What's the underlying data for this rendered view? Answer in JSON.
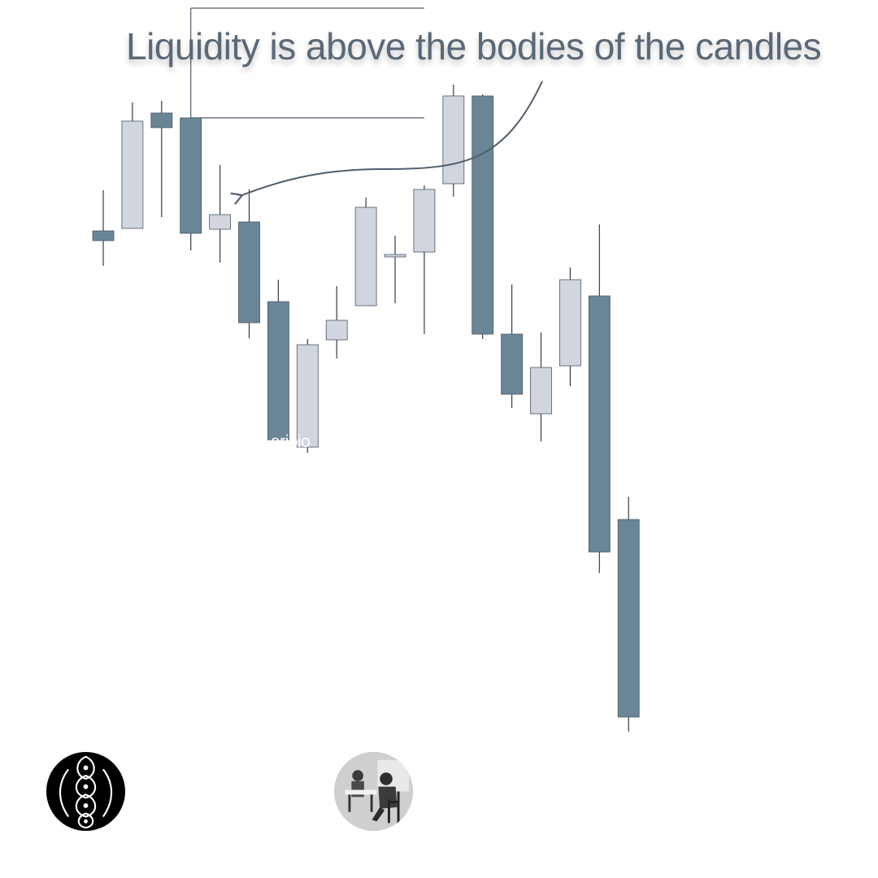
{
  "headline": "Liquidity is above the bodies of the candles",
  "watermark": "arjoio",
  "colors": {
    "bearish": "#6a8696",
    "bullish": "#d0d5de",
    "outline": "#4a5866",
    "wick": "#333d47",
    "annotation": "#4f5d6b",
    "text": "#5a6877"
  },
  "logo_icon": "ornamental-emblem-icon",
  "avatar_icon": "vintage-photo-avatar-icon",
  "chart_data": {
    "type": "candlestick",
    "title": "Liquidity is above the bodies of the candles",
    "y_axis": "price (unlabeled)",
    "ylim": [
      0,
      100
    ],
    "candles": [
      {
        "open": 77.6,
        "close": 76.4,
        "high": 82.6,
        "low": 73.3
      },
      {
        "open": 77.9,
        "close": 91.1,
        "high": 93.4,
        "low": 77.9
      },
      {
        "open": 92.1,
        "close": 90.3,
        "high": 93.6,
        "low": 79.3
      },
      {
        "open": 91.5,
        "close": 77.3,
        "high": 91.5,
        "low": 75.2
      },
      {
        "open": 77.8,
        "close": 79.6,
        "high": 85.7,
        "low": 73.7
      },
      {
        "open": 78.7,
        "close": 66.3,
        "high": 82.7,
        "low": 64.4
      },
      {
        "open": 68.9,
        "close": 51.9,
        "high": 71.6,
        "low": 51.3
      },
      {
        "open": 51.0,
        "close": 63.6,
        "high": 64.3,
        "low": 50.3
      },
      {
        "open": 64.2,
        "close": 66.6,
        "high": 70.8,
        "low": 61.9
      },
      {
        "open": 68.4,
        "close": 80.5,
        "high": 81.7,
        "low": 68.4
      },
      {
        "open": 74.4,
        "close": 74.7,
        "high": 77.0,
        "low": 68.7
      },
      {
        "open": 75.0,
        "close": 82.7,
        "high": 83.2,
        "low": 64.9
      },
      {
        "open": 83.4,
        "close": 94.2,
        "high": 95.6,
        "low": 81.8
      },
      {
        "open": 94.2,
        "close": 64.9,
        "high": 94.4,
        "low": 64.3
      },
      {
        "open": 64.9,
        "close": 57.5,
        "high": 71.0,
        "low": 55.8
      },
      {
        "open": 55.1,
        "close": 60.8,
        "high": 65.1,
        "low": 51.7
      },
      {
        "open": 61.0,
        "close": 71.6,
        "high": 73.1,
        "low": 58.5
      },
      {
        "open": 69.6,
        "close": 38.1,
        "high": 78.4,
        "low": 35.5
      },
      {
        "open": 42.1,
        "close": 17.8,
        "high": 44.9,
        "low": 16.0
      }
    ],
    "liquidity_zone": {
      "upper": 105.0,
      "lower": 91.5,
      "start_candle": 3,
      "end_candle": 11
    },
    "annotation_text": "Liquidity is above the bodies of the candles"
  }
}
